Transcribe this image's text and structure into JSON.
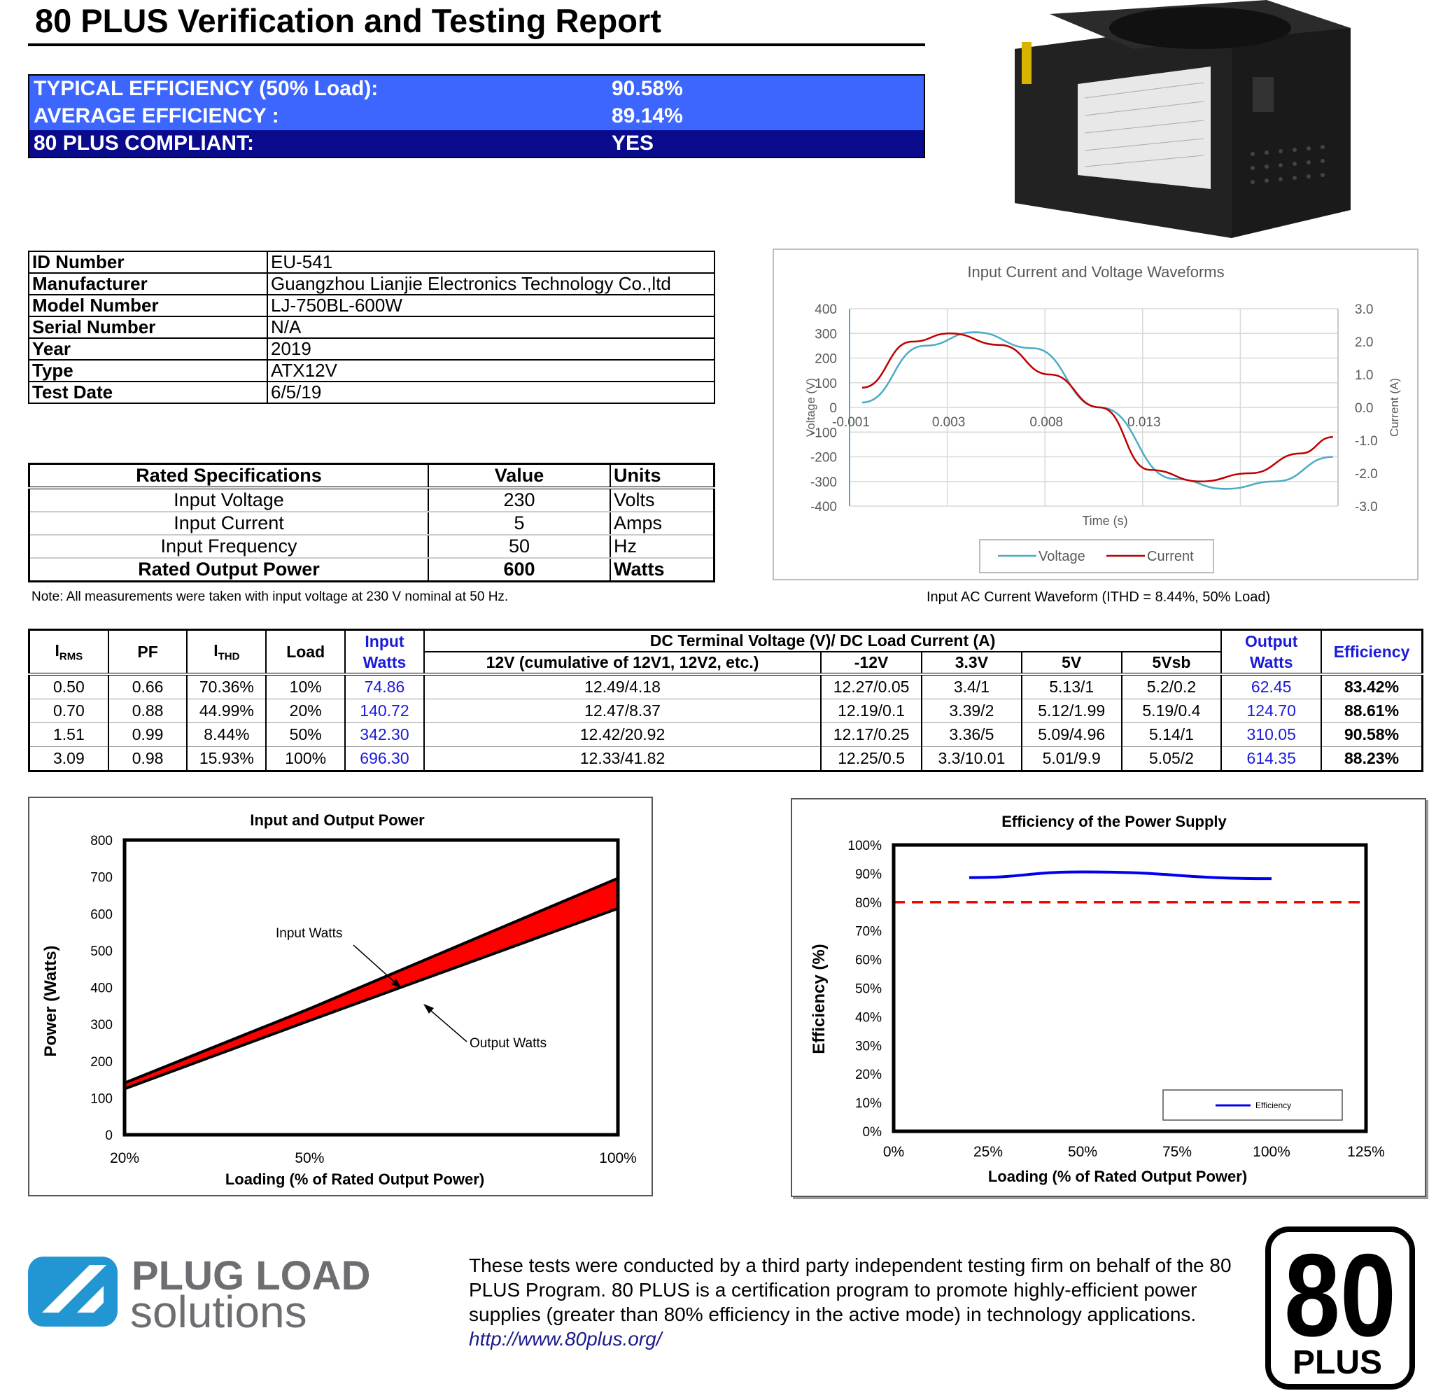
{
  "title": "80 PLUS Verification and Testing Report",
  "summary": [
    {
      "label": "TYPICAL EFFICIENCY (50% Load):",
      "value": "90.58%"
    },
    {
      "label": "AVERAGE EFFICIENCY :",
      "value": "89.14%"
    },
    {
      "label": "80 PLUS COMPLIANT:",
      "value": "YES"
    }
  ],
  "colors": {
    "summary_bright": "#3d66ff",
    "summary_dark": "#0a0a8c",
    "input_band": "#ff0000",
    "efficiency_line": "#0000ee",
    "threshold_line": "#ff0000",
    "voltage_line": "#4bacc6",
    "current_line": "#c00000"
  },
  "id_info": [
    {
      "key": "ID Number",
      "value": "EU-541"
    },
    {
      "key": "Manufacturer",
      "value": "Guangzhou Lianjie Electronics Technology Co.,ltd"
    },
    {
      "key": "Model Number",
      "value": "LJ-750BL-600W"
    },
    {
      "key": "Serial Number",
      "value": "N/A"
    },
    {
      "key": "Year",
      "value": "2019"
    },
    {
      "key": "Type",
      "value": "ATX12V"
    },
    {
      "key": "Test Date",
      "value": "6/5/19"
    }
  ],
  "rated_specs": {
    "headers": [
      "Rated Specifications",
      "Value",
      "Units"
    ],
    "rows": [
      [
        "Input Voltage",
        "230",
        "Volts"
      ],
      [
        "Input Current",
        "5",
        "Amps"
      ],
      [
        "Input Frequency",
        "50",
        "Hz"
      ],
      [
        "Rated Output Power",
        "600",
        "Watts"
      ]
    ]
  },
  "note": "Note: All measurements were taken with input voltage at 230 V nominal at 50 Hz.",
  "waveform_caption": "Input AC Current Waveform (ITHD = 8.44%, 50% Load)",
  "data_table": {
    "headers": {
      "irms": "I",
      "irms_sub": "RMS",
      "pf": "PF",
      "ithd": "I",
      "ithd_sub": "THD",
      "load": "Load",
      "input1": "Input",
      "input2": "Watts",
      "dc_group": "DC Terminal Voltage (V)/ DC Load Current (A)",
      "v12": "12V (cumulative of 12V1, 12V2, etc.)",
      "vneg12": "-12V",
      "v33": "3.3V",
      "v5": "5V",
      "v5sb": "5Vsb",
      "output1": "Output",
      "output2": "Watts",
      "efficiency": "Efficiency"
    },
    "rows": [
      [
        "0.50",
        "0.66",
        "70.36%",
        "10%",
        "74.86",
        "12.49/4.18",
        "12.27/0.05",
        "3.4/1",
        "5.13/1",
        "5.2/0.2",
        "62.45",
        "83.42%"
      ],
      [
        "0.70",
        "0.88",
        "44.99%",
        "20%",
        "140.72",
        "12.47/8.37",
        "12.19/0.1",
        "3.39/2",
        "5.12/1.99",
        "5.19/0.4",
        "124.70",
        "88.61%"
      ],
      [
        "1.51",
        "0.99",
        "8.44%",
        "50%",
        "342.30",
        "12.42/20.92",
        "12.17/0.25",
        "3.36/5",
        "5.09/4.96",
        "5.14/1",
        "310.05",
        "90.58%"
      ],
      [
        "3.09",
        "0.98",
        "15.93%",
        "100%",
        "696.30",
        "12.33/41.82",
        "12.25/0.5",
        "3.3/10.01",
        "5.01/9.9",
        "5.05/2",
        "614.35",
        "88.23%"
      ]
    ]
  },
  "chart_data": [
    {
      "type": "line",
      "title": "Input Current and Voltage Waveforms",
      "xlabel": "Time (s)",
      "ylabel": "Voltage (V)",
      "y2label": "Current (A)",
      "x_tick_labels": [
        "-0.001",
        "0.003",
        "0.008",
        "0.013"
      ],
      "ylim": [
        -400,
        400
      ],
      "y_ticks": [
        400,
        300,
        200,
        100,
        0,
        -100,
        -200,
        -300,
        -400
      ],
      "y2lim": [
        -3.0,
        3.0
      ],
      "y2_ticks": [
        "3.0",
        "2.0",
        "1.0",
        "0.0",
        "-1.0",
        "-2.0",
        "-3.0"
      ],
      "grid": true,
      "legend": "bottom",
      "series": [
        {
          "name": "Voltage",
          "axis": "left",
          "x": [
            -0.001,
            0.0015,
            0.0035,
            0.0058,
            0.0085,
            0.0115,
            0.0135,
            0.0155,
            0.0178
          ],
          "values": [
            20,
            250,
            305,
            240,
            0,
            -290,
            -330,
            -300,
            -200
          ]
        },
        {
          "name": "Current",
          "axis": "right",
          "x": [
            -0.001,
            0.001,
            0.0025,
            0.0045,
            0.0065,
            0.0085,
            0.0105,
            0.0125,
            0.0145,
            0.0165,
            0.0178
          ],
          "values": [
            0.6,
            2.0,
            2.25,
            1.9,
            1.0,
            0.0,
            -1.9,
            -2.25,
            -2.0,
            -1.4,
            -0.9
          ]
        }
      ]
    },
    {
      "type": "area",
      "title": "Input and Output Power",
      "xlabel": "Loading (% of Rated Output Power)",
      "ylabel": "Power (Watts)",
      "categories": [
        "20%",
        "50%",
        "100%"
      ],
      "ylim": [
        0,
        800
      ],
      "y_ticks": [
        0,
        100,
        200,
        300,
        400,
        500,
        600,
        700,
        800
      ],
      "annotations": [
        "Input Watts",
        "Output Watts"
      ],
      "series": [
        {
          "name": "Input Watts",
          "values": [
            140.72,
            342.3,
            696.3
          ]
        },
        {
          "name": "Output Watts",
          "values": [
            124.7,
            310.05,
            614.35
          ]
        }
      ]
    },
    {
      "type": "line",
      "title": "Efficiency of the Power Supply",
      "xlabel": "Loading (% of Rated Output Power)",
      "ylabel": "Efficiency (%)",
      "x_ticks": [
        "0%",
        "25%",
        "50%",
        "75%",
        "100%",
        "125%"
      ],
      "xlim": [
        0,
        125
      ],
      "y_ticks": [
        "0%",
        "10%",
        "20%",
        "30%",
        "40%",
        "50%",
        "60%",
        "70%",
        "80%",
        "90%",
        "100%"
      ],
      "ylim": [
        0,
        100
      ],
      "threshold": 80,
      "legend": "bottom-right",
      "series": [
        {
          "name": "Efficiency",
          "x": [
            20,
            50,
            100
          ],
          "values": [
            88.61,
            90.58,
            88.23
          ]
        }
      ]
    }
  ],
  "footer": {
    "logo_line1": "PLUG LOAD",
    "logo_line2": "solutions",
    "text": "These tests were conducted by a third party independent testing firm on behalf of the 80 PLUS Program. 80 PLUS is a certification program to promote highly-efficient power supplies (greater than 80% efficiency in the active mode) in technology applications.",
    "link": "http://www.80plus.org/",
    "badge_number": "80",
    "badge_word": "PLUS"
  }
}
